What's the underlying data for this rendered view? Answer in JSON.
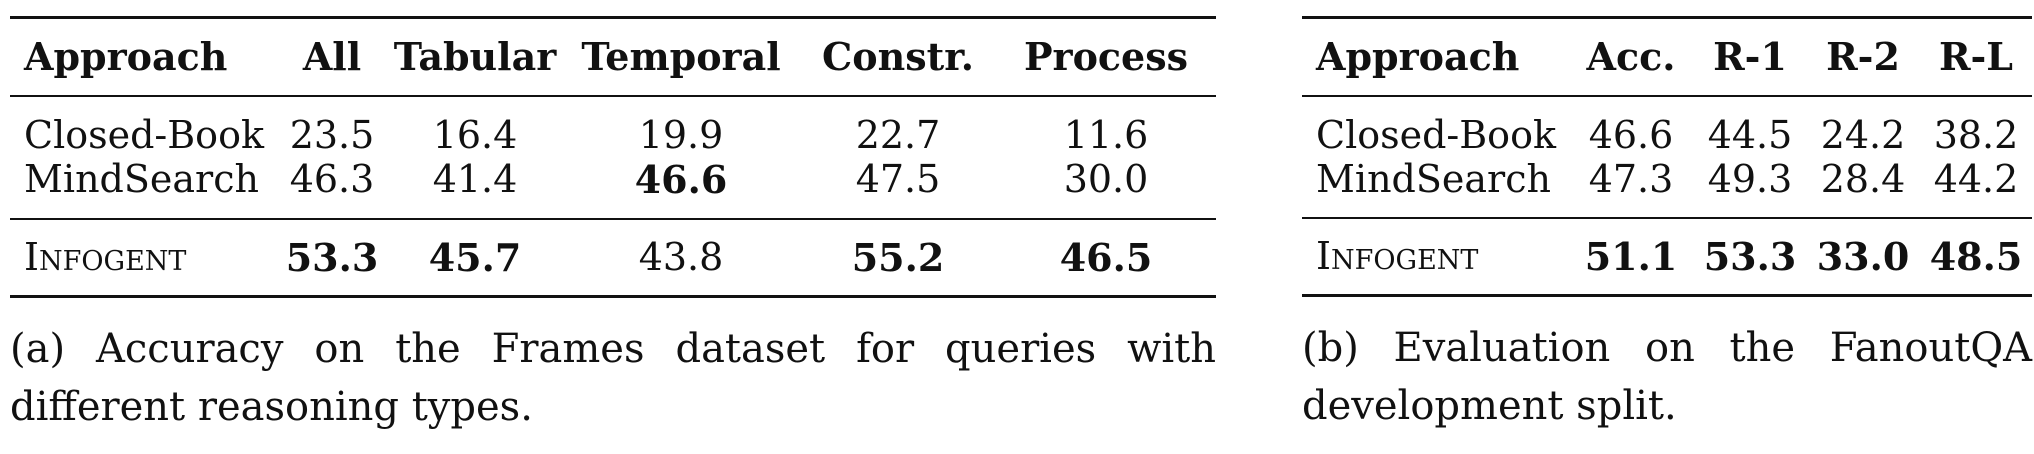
{
  "table_a": {
    "headers": [
      "Approach",
      "All",
      "Tabular",
      "Temporal",
      "Constr.",
      "Process"
    ],
    "baselines": [
      {
        "name": "Closed-Book",
        "values": [
          "23.5",
          "16.4",
          "19.9",
          "22.7",
          "11.6"
        ],
        "bold": [
          false,
          false,
          false,
          false,
          false
        ]
      },
      {
        "name": "MindSearch",
        "values": [
          "46.3",
          "41.4",
          "46.6",
          "47.5",
          "30.0"
        ],
        "bold": [
          false,
          false,
          true,
          false,
          false
        ]
      }
    ],
    "ours": {
      "name": "Infogent",
      "values": [
        "53.3",
        "45.7",
        "43.8",
        "55.2",
        "46.5"
      ],
      "bold": [
        true,
        true,
        false,
        true,
        true
      ]
    },
    "caption": "(a) Accuracy on the Frames dataset for queries with different reasoning types."
  },
  "table_b": {
    "headers": [
      "Approach",
      "Acc.",
      "R-1",
      "R-2",
      "R-L"
    ],
    "baselines": [
      {
        "name": "Closed-Book",
        "values": [
          "46.6",
          "44.5",
          "24.2",
          "38.2"
        ],
        "bold": [
          false,
          false,
          false,
          false
        ]
      },
      {
        "name": "MindSearch",
        "values": [
          "47.3",
          "49.3",
          "28.4",
          "44.2"
        ],
        "bold": [
          false,
          false,
          false,
          false
        ]
      }
    ],
    "ours": {
      "name": "Infogent",
      "values": [
        "51.1",
        "53.3",
        "33.0",
        "48.5"
      ],
      "bold": [
        true,
        true,
        true,
        true
      ]
    },
    "caption": "(b) Evaluation on the FanoutQA development split."
  }
}
